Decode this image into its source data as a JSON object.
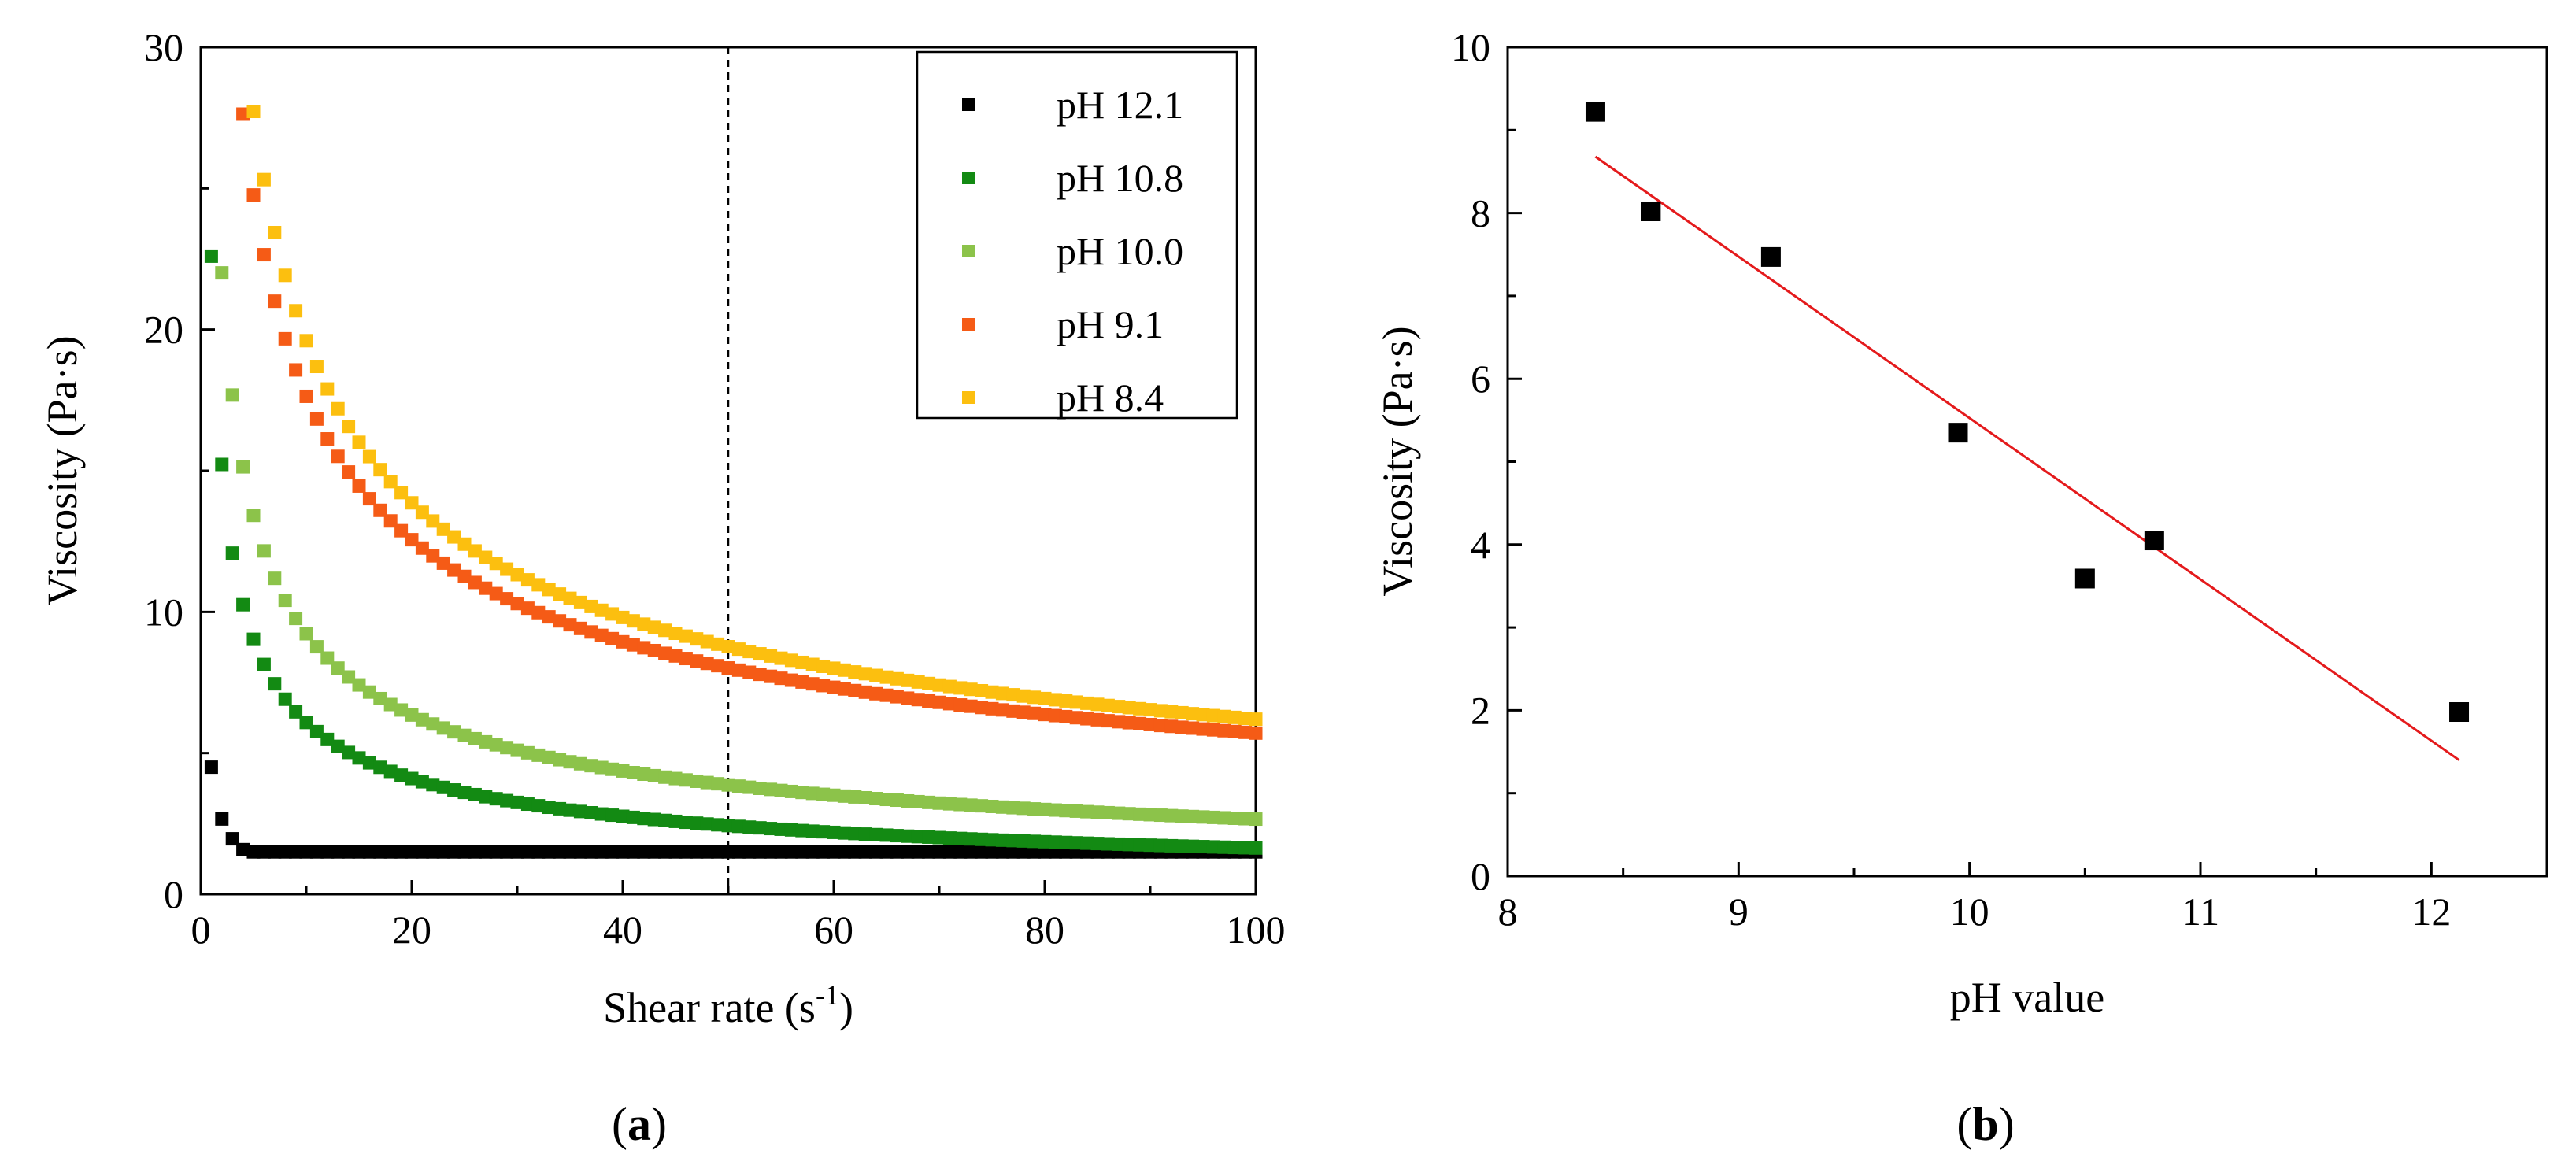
{
  "chart_data": [
    {
      "type": "scatter",
      "panel_label": "a",
      "xlabel": "Shear rate (s",
      "xlabel_sup": "-1",
      "xlabel_close": ")",
      "ylabel": "Viscosity (Pa·s)",
      "xlim": [
        0,
        100
      ],
      "ylim": [
        0,
        30
      ],
      "xticks": [
        "0",
        "20",
        "40",
        "60",
        "80",
        "100"
      ],
      "yticks": [
        "0",
        "10",
        "20",
        "30"
      ],
      "reference_line_x": 50,
      "legend_position": "top-right",
      "series": [
        {
          "name": "pH 12.1",
          "color": "#000000",
          "eta1": 4.5,
          "n": 0.245,
          "plateau": 1.5
        },
        {
          "name": "pH 10.8",
          "color": "#138a13",
          "eta1": 22.6,
          "n": 0.43,
          "plateau": 0
        },
        {
          "name": "pH 10.0",
          "color": "#8cc34a",
          "eta1": 32.0,
          "n": 0.46,
          "plateau": 0
        },
        {
          "name": "pH 9.1",
          "color": "#f55b16",
          "eta1": 54.5,
          "n": 0.51,
          "plateau": 0
        },
        {
          "name": "pH 8.4",
          "color": "#fcbf0f",
          "eta1": 62.0,
          "n": 0.5,
          "plateau": 0
        }
      ]
    },
    {
      "type": "scatter",
      "panel_label": "b",
      "xlabel": "pH value",
      "ylabel": "Viscosity (Pa·s)",
      "xlim": [
        8,
        12.5
      ],
      "ylim": [
        0,
        10
      ],
      "xticks": [
        "8",
        "9",
        "10",
        "11",
        "12"
      ],
      "yticks": [
        "0",
        "2",
        "4",
        "6",
        "8",
        "10"
      ],
      "points": [
        {
          "x": 8.38,
          "y": 9.22
        },
        {
          "x": 8.62,
          "y": 8.02
        },
        {
          "x": 9.14,
          "y": 7.47
        },
        {
          "x": 9.95,
          "y": 5.35
        },
        {
          "x": 10.5,
          "y": 3.59
        },
        {
          "x": 10.8,
          "y": 4.05
        },
        {
          "x": 12.12,
          "y": 1.98
        }
      ],
      "fit_line": {
        "x": [
          8.38,
          12.12
        ],
        "y": [
          8.68,
          1.4
        ],
        "color": "#e41a1c"
      },
      "point_color": "#000000"
    }
  ]
}
